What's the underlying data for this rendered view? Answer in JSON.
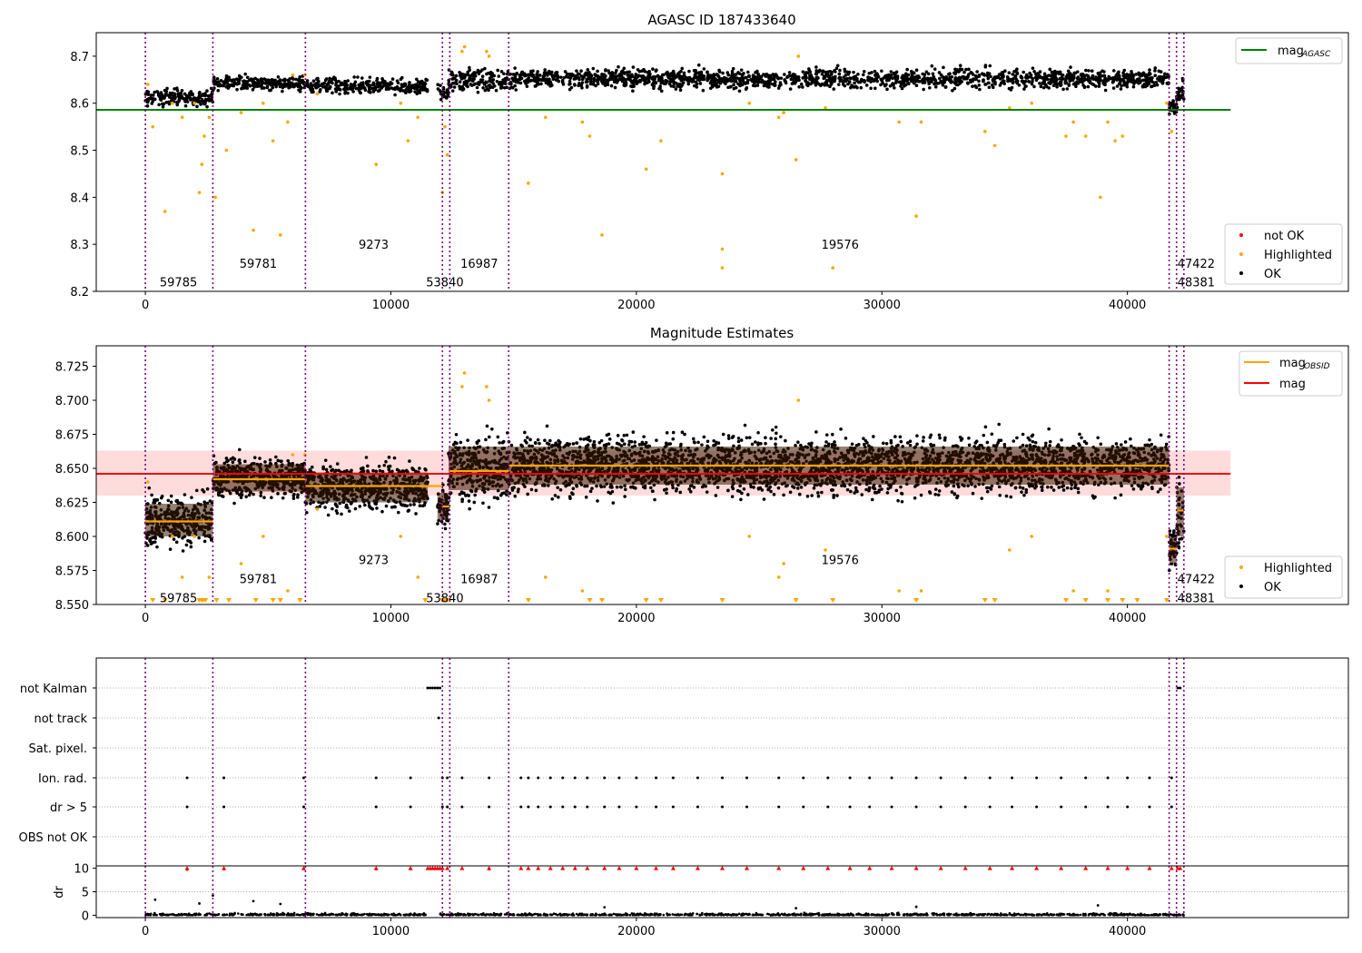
{
  "chart_data": [
    {
      "id": "agasc",
      "type": "scatter",
      "title": "AGASC ID 187433640",
      "xlim": [
        -2000,
        49000
      ],
      "ylim": [
        8.2,
        8.75
      ],
      "xticks": [
        0,
        10000,
        20000,
        30000,
        40000
      ],
      "yticks": [
        8.2,
        8.3,
        8.4,
        8.5,
        8.6,
        8.7
      ],
      "ytick_labels": [
        "8.2",
        "8.3",
        "8.4",
        "8.5",
        "8.6",
        "8.7"
      ],
      "obs_boundaries": [
        0,
        2750,
        6520,
        12100,
        12400,
        14800,
        41700,
        42000,
        42300
      ],
      "obs_labels": [
        {
          "text": "59785",
          "x": 1350,
          "y": 8.22
        },
        {
          "text": "59781",
          "x": 4600,
          "y": 8.26
        },
        {
          "text": "9273",
          "x": 9300,
          "y": 8.3
        },
        {
          "text": "53840",
          "x": 12200,
          "y": 8.22
        },
        {
          "text": "16987",
          "x": 13600,
          "y": 8.26
        },
        {
          "text": "19576",
          "x": 28300,
          "y": 8.3
        },
        {
          "text": "47422",
          "x": 42800,
          "y": 8.26
        },
        {
          "text": "48381",
          "x": 42800,
          "y": 8.22
        }
      ],
      "segments": [
        {
          "x0": 0,
          "x1": 2750,
          "mean": 8.612,
          "spread": 0.012
        },
        {
          "x0": 2750,
          "x1": 6520,
          "mean": 8.643,
          "spread": 0.01
        },
        {
          "x0": 6520,
          "x1": 11500,
          "mean": 8.636,
          "spread": 0.011
        },
        {
          "x0": 11900,
          "x1": 12350,
          "mean": 8.622,
          "spread": 0.01
        },
        {
          "x0": 12350,
          "x1": 14800,
          "mean": 8.65,
          "spread": 0.016
        },
        {
          "x0": 14800,
          "x1": 41700,
          "mean": 8.652,
          "spread": 0.014
        },
        {
          "x0": 41700,
          "x1": 42000,
          "mean": 8.59,
          "spread": 0.01
        },
        {
          "x0": 42000,
          "x1": 42300,
          "mean": 8.618,
          "spread": 0.018
        }
      ],
      "highlighted_points": [
        [
          100,
          8.64
        ],
        [
          300,
          8.55
        ],
        [
          800,
          8.37
        ],
        [
          1100,
          8.6
        ],
        [
          1500,
          8.57
        ],
        [
          2000,
          8.6
        ],
        [
          2200,
          8.41
        ],
        [
          2300,
          8.47
        ],
        [
          2400,
          8.53
        ],
        [
          2600,
          8.57
        ],
        [
          2850,
          8.4
        ],
        [
          3300,
          8.5
        ],
        [
          3900,
          8.58
        ],
        [
          4400,
          8.33
        ],
        [
          4800,
          8.6
        ],
        [
          5200,
          8.52
        ],
        [
          5500,
          8.32
        ],
        [
          5800,
          8.56
        ],
        [
          6000,
          8.66
        ],
        [
          6500,
          8.66
        ],
        [
          7000,
          8.62
        ],
        [
          9400,
          8.47
        ],
        [
          10400,
          8.6
        ],
        [
          10700,
          8.52
        ],
        [
          11100,
          8.57
        ],
        [
          12100,
          8.41
        ],
        [
          12200,
          8.55
        ],
        [
          12300,
          8.49
        ],
        [
          12900,
          8.71
        ],
        [
          13000,
          8.72
        ],
        [
          13900,
          8.71
        ],
        [
          14000,
          8.7
        ],
        [
          15600,
          8.43
        ],
        [
          16300,
          8.57
        ],
        [
          17800,
          8.56
        ],
        [
          18100,
          8.53
        ],
        [
          18600,
          8.32
        ],
        [
          20400,
          8.46
        ],
        [
          21000,
          8.52
        ],
        [
          23500,
          8.45
        ],
        [
          23500,
          8.29
        ],
        [
          23500,
          8.25
        ],
        [
          24600,
          8.6
        ],
        [
          25800,
          8.57
        ],
        [
          26000,
          8.58
        ],
        [
          26500,
          8.48
        ],
        [
          26600,
          8.7
        ],
        [
          27700,
          8.59
        ],
        [
          28000,
          8.25
        ],
        [
          30700,
          8.56
        ],
        [
          31400,
          8.36
        ],
        [
          31600,
          8.56
        ],
        [
          34200,
          8.54
        ],
        [
          34600,
          8.51
        ],
        [
          35200,
          8.59
        ],
        [
          36100,
          8.6
        ],
        [
          37500,
          8.53
        ],
        [
          37800,
          8.56
        ],
        [
          38900,
          8.4
        ],
        [
          38300,
          8.53
        ],
        [
          39200,
          8.56
        ],
        [
          39500,
          8.52
        ],
        [
          39800,
          8.53
        ],
        [
          41600,
          8.6
        ],
        [
          41800,
          8.54
        ]
      ],
      "legend_lines": [
        {
          "label": "mag",
          "subscript": "AGASC",
          "color": "#008000",
          "value": 8.586
        }
      ],
      "legend_points": [
        {
          "label": "not OK",
          "color": "#ff0000"
        },
        {
          "label": "Highlighted",
          "color": "#ffa500"
        },
        {
          "label": "OK",
          "color": "#000000"
        }
      ]
    },
    {
      "id": "estimates",
      "type": "scatter",
      "title": "Magnitude Estimates",
      "xlim": [
        -2000,
        49000
      ],
      "ylim": [
        8.55,
        8.74
      ],
      "xticks": [
        0,
        10000,
        20000,
        30000,
        40000
      ],
      "yticks": [
        8.55,
        8.575,
        8.6,
        8.625,
        8.65,
        8.675,
        8.7,
        8.725
      ],
      "ytick_labels": [
        "8.550",
        "8.575",
        "8.600",
        "8.625",
        "8.650",
        "8.675",
        "8.700",
        "8.725"
      ],
      "mag": 8.646,
      "mag_band": [
        8.63,
        8.663
      ],
      "obsid_means": [
        {
          "x0": 0,
          "x1": 2750,
          "mag": 8.611
        },
        {
          "x0": 2750,
          "x1": 6520,
          "mag": 8.642
        },
        {
          "x0": 6520,
          "x1": 12100,
          "mag": 8.637
        },
        {
          "x0": 12100,
          "x1": 12400,
          "mag": 8.622
        },
        {
          "x0": 12400,
          "x1": 14800,
          "mag": 8.648
        },
        {
          "x0": 14800,
          "x1": 41700,
          "mag": 8.652
        },
        {
          "x0": 41700,
          "x1": 42000,
          "mag": 8.591
        },
        {
          "x0": 42000,
          "x1": 42300,
          "mag": 8.619
        }
      ],
      "below_axis_markers": [
        300,
        800,
        2200,
        2300,
        2350,
        2450,
        2900,
        3400,
        4500,
        5200,
        5500,
        6300,
        11400,
        12100,
        12200,
        12300,
        15600,
        18100,
        18600,
        20400,
        21000,
        23500,
        26500,
        28000,
        31400,
        34200,
        34600,
        37500,
        38300,
        39200,
        39800,
        40400,
        41600
      ],
      "legend_lines": [
        {
          "label": "mag",
          "subscript": "OBSID",
          "color": "#ffa500"
        },
        {
          "label": "mag",
          "subscript": "",
          "color": "#ff0000"
        }
      ],
      "legend_points": [
        {
          "label": "Highlighted",
          "color": "#ffa500"
        },
        {
          "label": "OK",
          "color": "#000000"
        }
      ]
    },
    {
      "id": "flags",
      "type": "scatter",
      "xlim": [
        -2000,
        49000
      ],
      "xticks": [
        0,
        10000,
        20000,
        30000,
        40000
      ],
      "categories": [
        "not Kalman",
        "not track",
        "Sat. pixel.",
        "Ion. rad.",
        "dr > 5",
        "OBS not OK"
      ],
      "flag_points": {
        "not Kalman": [
          11500,
          11600,
          11700,
          11800,
          11900,
          12000,
          42050,
          42150
        ],
        "not track": [
          11950
        ],
        "Sat. pixel.": [],
        "Ion. rad.": [
          1700,
          3200,
          6450,
          9400,
          10800,
          12100,
          12300,
          12900,
          14000,
          15300,
          15600,
          16000,
          16500,
          17000,
          17500,
          18000,
          18700,
          19300,
          20000,
          20800,
          21500,
          22500,
          23500,
          24500,
          25800,
          26800,
          27800,
          28700,
          29500,
          30400,
          31400,
          32400,
          33400,
          34400,
          35300,
          36300,
          37300,
          38300,
          39200,
          40000,
          40900,
          41800
        ],
        "dr > 5": [
          1700,
          3200,
          6450,
          9400,
          10800,
          12100,
          12300,
          12900,
          14000,
          15300,
          15600,
          16000,
          16500,
          17000,
          17500,
          18000,
          18700,
          19300,
          20000,
          20800,
          21500,
          22500,
          23500,
          24500,
          25800,
          26800,
          27800,
          28700,
          29500,
          30400,
          31400,
          32400,
          33400,
          34400,
          35300,
          36300,
          37300,
          38300,
          39200,
          40000,
          40900,
          41800
        ],
        "OBS not OK": []
      }
    },
    {
      "id": "dr",
      "type": "scatter",
      "xlim": [
        -2000,
        49000
      ],
      "ylim": [
        -0.5,
        10.5
      ],
      "xticks": [
        0,
        10000,
        20000,
        30000,
        40000
      ],
      "yticks": [
        0,
        5,
        10
      ],
      "ytick_labels": [
        "0",
        "5",
        "10"
      ],
      "ylabel": "dr",
      "clipped_at": 10,
      "outliers": [
        [
          400,
          3.3
        ],
        [
          1700,
          9.7
        ],
        [
          2200,
          2.5
        ],
        [
          2750,
          4.2
        ],
        [
          3200,
          9.8
        ],
        [
          4400,
          3.0
        ],
        [
          5500,
          2.4
        ],
        [
          6450,
          9.8
        ],
        [
          9400,
          9.8
        ],
        [
          10800,
          9.8
        ],
        [
          14000,
          9.8
        ],
        [
          18700,
          1.7
        ],
        [
          26500,
          1.5
        ],
        [
          31400,
          1.8
        ],
        [
          38800,
          2.1
        ]
      ]
    }
  ],
  "x_tick_labels": [
    "0",
    "10000",
    "20000",
    "30000",
    "40000"
  ]
}
